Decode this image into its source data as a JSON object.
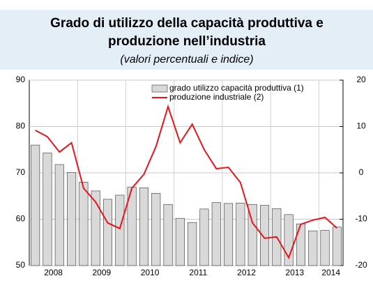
{
  "chart_data": {
    "type": "bar_line",
    "title": "Grado di utilizzo della capacità produttiva e produzione nell’industria",
    "subtitle": "(valori percentuali e indice)",
    "categories": [
      "2008",
      null,
      null,
      null,
      "2009",
      null,
      null,
      null,
      "2010",
      null,
      null,
      null,
      "2011",
      null,
      null,
      null,
      "2012",
      null,
      null,
      null,
      "2013",
      null,
      null,
      null,
      "2014",
      null
    ],
    "series": [
      {
        "name": "grado utilizzo capacità produttiva (1)",
        "color": "#d9d9d9",
        "values": [
          76,
          74.3,
          71.8,
          70.1,
          68,
          66.1,
          64.3,
          65.2,
          66.9,
          66.8,
          65.6,
          63.2,
          60.2,
          59.3,
          62.2,
          63.6,
          63.4,
          63.5,
          63.2,
          63,
          62.3,
          61,
          59,
          57.5,
          57.6,
          58.3
        ]
      },
      {
        "name": "produzione industriale (2)",
        "color": "#e8141b",
        "axis": "y2",
        "values": [
          9.2,
          7.8,
          4.5,
          6.5,
          -3.3,
          -6.3,
          -10.8,
          -12,
          -3.3,
          -0.3,
          5.7,
          14.3,
          6.5,
          10.5,
          5,
          0.9,
          1.2,
          -2.1,
          -10.8,
          -14.1,
          -13.8,
          -18.3,
          -11.1,
          -10.2,
          -9.6,
          -11.9
        ]
      }
    ],
    "ylim": [
      50,
      90
    ],
    "yticks": [
      50,
      60,
      70,
      80,
      90
    ],
    "y2lim": [
      -20,
      20
    ],
    "y2ticks": [
      -20,
      -10,
      0,
      10,
      20
    ],
    "grid": true,
    "legend": "top-right"
  }
}
